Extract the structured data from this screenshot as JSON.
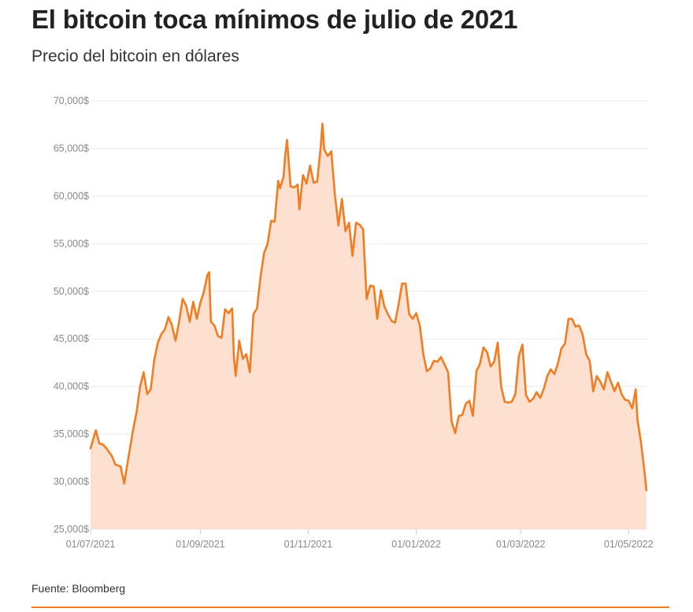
{
  "title": "El bitcoin toca mínimos de julio de 2021",
  "subtitle": "Precio del bitcoin en dólares",
  "source": "Fuente: Bloomberg",
  "colors": {
    "line": "#f07d22",
    "area": "#fde0cf",
    "grid": "#e9e9e9",
    "rule": "#f07d22"
  },
  "chart_data": {
    "type": "area",
    "title": "El bitcoin toca mínimos de julio de 2021",
    "subtitle": "Precio del bitcoin en dólares",
    "ylim": [
      25000,
      70000
    ],
    "yticks": [
      {
        "value": 25000,
        "label": "25,000$"
      },
      {
        "value": 30000,
        "label": "30,000$"
      },
      {
        "value": 35000,
        "label": "35,000$"
      },
      {
        "value": 40000,
        "label": "40,000$"
      },
      {
        "value": 45000,
        "label": "45,000$"
      },
      {
        "value": 50000,
        "label": "50,000$"
      },
      {
        "value": 55000,
        "label": "55,000$"
      },
      {
        "value": 60000,
        "label": "60,000$"
      },
      {
        "value": 65000,
        "label": "65,000$"
      },
      {
        "value": 70000,
        "label": "70,000$"
      }
    ],
    "xlim": [
      "2021-07-01",
      "2022-05-12"
    ],
    "xticks": [
      {
        "value": "2021-07-01",
        "label": "01/07/2021"
      },
      {
        "value": "2021-09-01",
        "label": "01/09/2021"
      },
      {
        "value": "2021-11-01",
        "label": "01/11/2021"
      },
      {
        "value": "2022-01-01",
        "label": "01/01/2022"
      },
      {
        "value": "2022-03-01",
        "label": "01/03/2022"
      },
      {
        "value": "2022-05-01",
        "label": "01/05/2022"
      }
    ],
    "series": [
      {
        "points": [
          [
            "2021-07-01",
            33500
          ],
          [
            "2021-07-03",
            34800
          ],
          [
            "2021-07-04",
            35400
          ],
          [
            "2021-07-06",
            34000
          ],
          [
            "2021-07-08",
            33900
          ],
          [
            "2021-07-10",
            33500
          ],
          [
            "2021-07-13",
            32700
          ],
          [
            "2021-07-15",
            31800
          ],
          [
            "2021-07-18",
            31600
          ],
          [
            "2021-07-20",
            29800
          ],
          [
            "2021-07-22",
            32100
          ],
          [
            "2021-07-25",
            35400
          ],
          [
            "2021-07-27",
            37300
          ],
          [
            "2021-07-29",
            40000
          ],
          [
            "2021-07-31",
            41500
          ],
          [
            "2021-08-02",
            39200
          ],
          [
            "2021-08-04",
            39700
          ],
          [
            "2021-08-06",
            42800
          ],
          [
            "2021-08-08",
            44600
          ],
          [
            "2021-08-10",
            45500
          ],
          [
            "2021-08-12",
            46000
          ],
          [
            "2021-08-14",
            47300
          ],
          [
            "2021-08-16",
            46400
          ],
          [
            "2021-08-18",
            44800
          ],
          [
            "2021-08-20",
            46800
          ],
          [
            "2021-08-22",
            49200
          ],
          [
            "2021-08-24",
            48500
          ],
          [
            "2021-08-26",
            46800
          ],
          [
            "2021-08-28",
            48900
          ],
          [
            "2021-08-30",
            47100
          ],
          [
            "2021-09-01",
            48800
          ],
          [
            "2021-09-03",
            49900
          ],
          [
            "2021-09-05",
            51700
          ],
          [
            "2021-09-06",
            52000
          ],
          [
            "2021-09-07",
            46800
          ],
          [
            "2021-09-09",
            46400
          ],
          [
            "2021-09-11",
            45300
          ],
          [
            "2021-09-13",
            45100
          ],
          [
            "2021-09-15",
            48100
          ],
          [
            "2021-09-17",
            47700
          ],
          [
            "2021-09-19",
            48200
          ],
          [
            "2021-09-20",
            43000
          ],
          [
            "2021-09-21",
            41100
          ],
          [
            "2021-09-23",
            44800
          ],
          [
            "2021-09-25",
            42900
          ],
          [
            "2021-09-27",
            43400
          ],
          [
            "2021-09-29",
            41500
          ],
          [
            "2021-10-01",
            47600
          ],
          [
            "2021-10-03",
            48200
          ],
          [
            "2021-10-05",
            51500
          ],
          [
            "2021-10-07",
            54000
          ],
          [
            "2021-10-09",
            55000
          ],
          [
            "2021-10-11",
            57400
          ],
          [
            "2021-10-13",
            57300
          ],
          [
            "2021-10-15",
            61600
          ],
          [
            "2021-10-16",
            60800
          ],
          [
            "2021-10-18",
            62000
          ],
          [
            "2021-10-19",
            64300
          ],
          [
            "2021-10-20",
            65900
          ],
          [
            "2021-10-22",
            61000
          ],
          [
            "2021-10-24",
            60900
          ],
          [
            "2021-10-26",
            61200
          ],
          [
            "2021-10-27",
            58600
          ],
          [
            "2021-10-29",
            62200
          ],
          [
            "2021-10-31",
            61300
          ],
          [
            "2021-11-02",
            63200
          ],
          [
            "2021-11-04",
            61400
          ],
          [
            "2021-11-06",
            61500
          ],
          [
            "2021-11-08",
            65100
          ],
          [
            "2021-11-09",
            67600
          ],
          [
            "2021-11-10",
            64900
          ],
          [
            "2021-11-12",
            64200
          ],
          [
            "2021-11-14",
            64700
          ],
          [
            "2021-11-16",
            60200
          ],
          [
            "2021-11-18",
            56900
          ],
          [
            "2021-11-20",
            59700
          ],
          [
            "2021-11-22",
            56300
          ],
          [
            "2021-11-24",
            57200
          ],
          [
            "2021-11-26",
            53700
          ],
          [
            "2021-11-28",
            57200
          ],
          [
            "2021-11-30",
            57000
          ],
          [
            "2021-12-02",
            56500
          ],
          [
            "2021-12-04",
            49200
          ],
          [
            "2021-12-06",
            50600
          ],
          [
            "2021-12-08",
            50500
          ],
          [
            "2021-12-10",
            47100
          ],
          [
            "2021-12-12",
            50100
          ],
          [
            "2021-12-14",
            48400
          ],
          [
            "2021-12-16",
            47600
          ],
          [
            "2021-12-18",
            46900
          ],
          [
            "2021-12-20",
            46700
          ],
          [
            "2021-12-22",
            48600
          ],
          [
            "2021-12-24",
            50800
          ],
          [
            "2021-12-26",
            50800
          ],
          [
            "2021-12-28",
            47600
          ],
          [
            "2021-12-30",
            47100
          ],
          [
            "2022-01-01",
            47700
          ],
          [
            "2022-01-03",
            46400
          ],
          [
            "2022-01-05",
            43400
          ],
          [
            "2022-01-07",
            41600
          ],
          [
            "2022-01-09",
            41900
          ],
          [
            "2022-01-11",
            42700
          ],
          [
            "2022-01-13",
            42600
          ],
          [
            "2022-01-15",
            43100
          ],
          [
            "2022-01-17",
            42300
          ],
          [
            "2022-01-19",
            41500
          ],
          [
            "2022-01-21",
            36300
          ],
          [
            "2022-01-23",
            35100
          ],
          [
            "2022-01-25",
            36900
          ],
          [
            "2022-01-27",
            37000
          ],
          [
            "2022-01-29",
            38200
          ],
          [
            "2022-01-31",
            38500
          ],
          [
            "2022-02-02",
            36900
          ],
          [
            "2022-02-04",
            41600
          ],
          [
            "2022-02-06",
            42400
          ],
          [
            "2022-02-08",
            44100
          ],
          [
            "2022-02-10",
            43600
          ],
          [
            "2022-02-12",
            42100
          ],
          [
            "2022-02-14",
            42600
          ],
          [
            "2022-02-16",
            44600
          ],
          [
            "2022-02-18",
            40000
          ],
          [
            "2022-02-20",
            38400
          ],
          [
            "2022-02-22",
            38300
          ],
          [
            "2022-02-24",
            38400
          ],
          [
            "2022-02-26",
            39200
          ],
          [
            "2022-02-28",
            43200
          ],
          [
            "2022-03-02",
            44400
          ],
          [
            "2022-03-04",
            39100
          ],
          [
            "2022-03-06",
            38400
          ],
          [
            "2022-03-08",
            38700
          ],
          [
            "2022-03-10",
            39400
          ],
          [
            "2022-03-12",
            38800
          ],
          [
            "2022-03-14",
            39700
          ],
          [
            "2022-03-16",
            41100
          ],
          [
            "2022-03-18",
            41800
          ],
          [
            "2022-03-20",
            41300
          ],
          [
            "2022-03-22",
            42400
          ],
          [
            "2022-03-24",
            44000
          ],
          [
            "2022-03-26",
            44500
          ],
          [
            "2022-03-28",
            47100
          ],
          [
            "2022-03-30",
            47100
          ],
          [
            "2022-04-01",
            46300
          ],
          [
            "2022-04-03",
            46400
          ],
          [
            "2022-04-05",
            45500
          ],
          [
            "2022-04-07",
            43400
          ],
          [
            "2022-04-09",
            42700
          ],
          [
            "2022-04-11",
            39500
          ],
          [
            "2022-04-13",
            41100
          ],
          [
            "2022-04-15",
            40500
          ],
          [
            "2022-04-17",
            39700
          ],
          [
            "2022-04-19",
            41500
          ],
          [
            "2022-04-21",
            40500
          ],
          [
            "2022-04-23",
            39500
          ],
          [
            "2022-04-25",
            40400
          ],
          [
            "2022-04-27",
            39200
          ],
          [
            "2022-04-29",
            38600
          ],
          [
            "2022-05-01",
            38500
          ],
          [
            "2022-05-03",
            37700
          ],
          [
            "2022-05-05",
            39700
          ],
          [
            "2022-05-06",
            36500
          ],
          [
            "2022-05-08",
            34100
          ],
          [
            "2022-05-10",
            31000
          ],
          [
            "2022-05-11",
            29100
          ]
        ]
      }
    ]
  }
}
